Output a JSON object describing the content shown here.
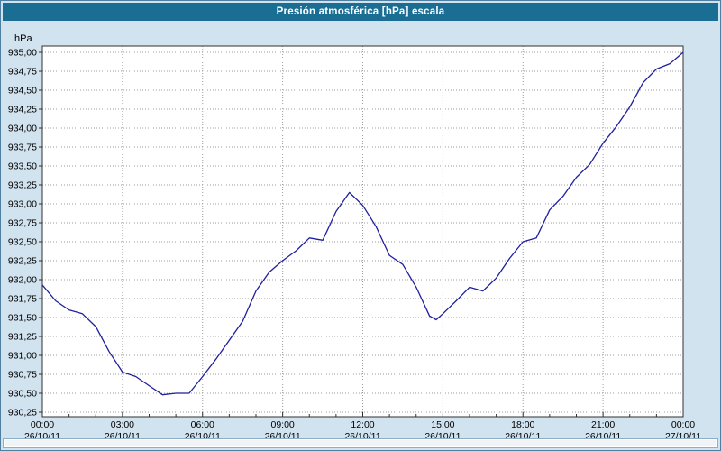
{
  "title_bar": {
    "title": "Presión atmosférica [hPa] escala"
  },
  "colors": {
    "title_bar_bg": "#1a6d93",
    "title_text": "#ffffff",
    "page_bg": "#d2e3f0",
    "window_border": "#4f7fa0",
    "plot_bg": "#ffffff",
    "grid": "#9e9e9e",
    "axis": "#303030",
    "line": "#1f1f9f",
    "label": "#000000",
    "scrollbar_border": "#8caec6"
  },
  "chart_data": {
    "type": "line",
    "title": "Presión atmosférica [hPa] escala",
    "xlabel": "",
    "ylabel": "hPa",
    "ylim": [
      930.25,
      935.0
    ],
    "y_tick_step": 0.25,
    "grid": true,
    "legend": "none",
    "y_tick_labels": [
      "935,00",
      "934,75",
      "934,50",
      "934,25",
      "934,00",
      "933,75",
      "933,50",
      "933,25",
      "933,00",
      "932,75",
      "932,50",
      "932,25",
      "932,00",
      "931,75",
      "931,50",
      "931,25",
      "931,00",
      "930,75",
      "930,50",
      "930,25"
    ],
    "x_range_hours": [
      0,
      24
    ],
    "x_tick_hours": [
      0,
      3,
      6,
      9,
      12,
      15,
      18,
      21,
      24
    ],
    "x_tick_times": [
      "00:00",
      "03:00",
      "06:00",
      "09:00",
      "12:00",
      "15:00",
      "18:00",
      "21:00",
      "00:00"
    ],
    "x_tick_dates": [
      "26/10/11",
      "26/10/11",
      "26/10/11",
      "26/10/11",
      "26/10/11",
      "26/10/11",
      "26/10/11",
      "26/10/11",
      "27/10/11"
    ],
    "series": [
      {
        "name": "Presión atmosférica [hPa]",
        "x_hours": [
          0,
          0.5,
          1,
          1.5,
          2,
          2.5,
          3,
          3.5,
          4,
          4.5,
          5,
          5.5,
          6,
          6.5,
          7,
          7.5,
          8,
          8.5,
          9,
          9.5,
          10,
          10.5,
          11,
          11.5,
          12,
          12.5,
          13,
          13.5,
          14,
          14.5,
          14.75,
          15,
          15.5,
          16,
          16.5,
          17,
          17.5,
          18,
          18.5,
          19,
          19.5,
          20,
          20.5,
          21,
          21.5,
          22,
          22.5,
          23,
          23.5,
          24
        ],
        "values": [
          931.93,
          931.72,
          931.6,
          931.55,
          931.38,
          931.05,
          930.78,
          930.72,
          930.6,
          930.48,
          930.5,
          930.5,
          930.72,
          930.95,
          931.2,
          931.45,
          931.85,
          932.1,
          932.25,
          932.38,
          932.55,
          932.52,
          932.9,
          933.15,
          932.98,
          932.7,
          932.32,
          932.2,
          931.9,
          931.52,
          931.47,
          931.55,
          931.72,
          931.9,
          931.85,
          932.02,
          932.28,
          932.5,
          932.55,
          932.92,
          933.1,
          933.35,
          933.52,
          933.8,
          934.02,
          934.28,
          934.6,
          934.78,
          934.85,
          935.0
        ]
      }
    ]
  }
}
